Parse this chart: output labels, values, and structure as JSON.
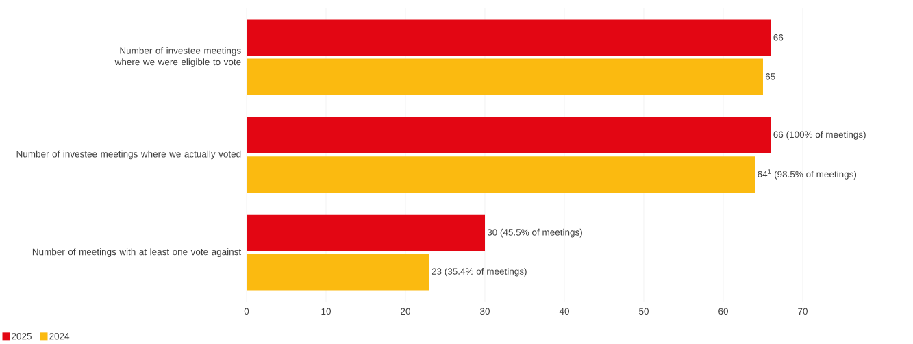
{
  "chart_data": {
    "type": "bar",
    "orientation": "horizontal",
    "categories": [
      "Number of investee meetings where we were eligible to vote",
      "Number of investee meetings where we actually voted",
      "Number of meetings with at least one vote against"
    ],
    "series": [
      {
        "name": "2025",
        "color": "#e30613",
        "values": [
          66,
          66,
          30
        ],
        "value_labels": [
          "66",
          "66 (100% of meetings)",
          "30 (45.5% of meetings)"
        ]
      },
      {
        "name": "2024",
        "color": "#fbba10",
        "values": [
          65,
          64,
          23
        ],
        "value_labels": [
          "65",
          "64$^{1}$ (98.5% of meetings)",
          "23 (35.4% of meetings)"
        ]
      }
    ],
    "xlim": [
      0,
      70
    ],
    "xticks": [
      0,
      10,
      20,
      30,
      40,
      50,
      60,
      70
    ],
    "grid": "x",
    "legend": "bottom left"
  }
}
